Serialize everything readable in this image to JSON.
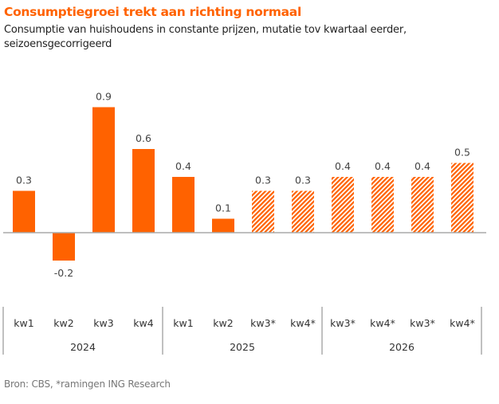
{
  "chart_data": {
    "type": "bar",
    "title": "Consumptiegroei trekt aan richting normaal",
    "subtitle": "Consumptie van huishoudens in constante prijzen, mutatie tov kwartaal eerder, seizoensgecorrigeerd",
    "source": "Bron: CBS, *ramingen ING Research",
    "xlabel": "",
    "ylabel": "",
    "ylim": [
      -0.2,
      0.9
    ],
    "grid": false,
    "legend": "none",
    "colors": {
      "bar": "#ff6200",
      "axis": "#aaaaaa"
    },
    "groups": [
      {
        "year": "2024",
        "categories": [
          "kw1",
          "kw2",
          "kw3",
          "kw4"
        ]
      },
      {
        "year": "2025",
        "categories": [
          "kw1",
          "kw2",
          "kw3*",
          "kw4*"
        ]
      },
      {
        "year": "2026",
        "categories": [
          "kw3*",
          "kw4*",
          "kw3*",
          "kw4*"
        ]
      }
    ],
    "categories": [
      "kw1",
      "kw2",
      "kw3",
      "kw4",
      "kw1",
      "kw2",
      "kw3*",
      "kw4*",
      "kw3*",
      "kw4*",
      "kw3*",
      "kw4*"
    ],
    "values": [
      0.3,
      -0.2,
      0.9,
      0.6,
      0.4,
      0.1,
      0.3,
      0.3,
      0.4,
      0.4,
      0.4,
      0.5
    ],
    "value_labels": [
      "0.3",
      "-0.2",
      "0.9",
      "0.6",
      "0.4",
      "0.1",
      "0.3",
      "0.3",
      "0.4",
      "0.4",
      "0.4",
      "0.5"
    ],
    "forecast": [
      false,
      false,
      false,
      false,
      false,
      false,
      true,
      true,
      true,
      true,
      true,
      true
    ]
  }
}
